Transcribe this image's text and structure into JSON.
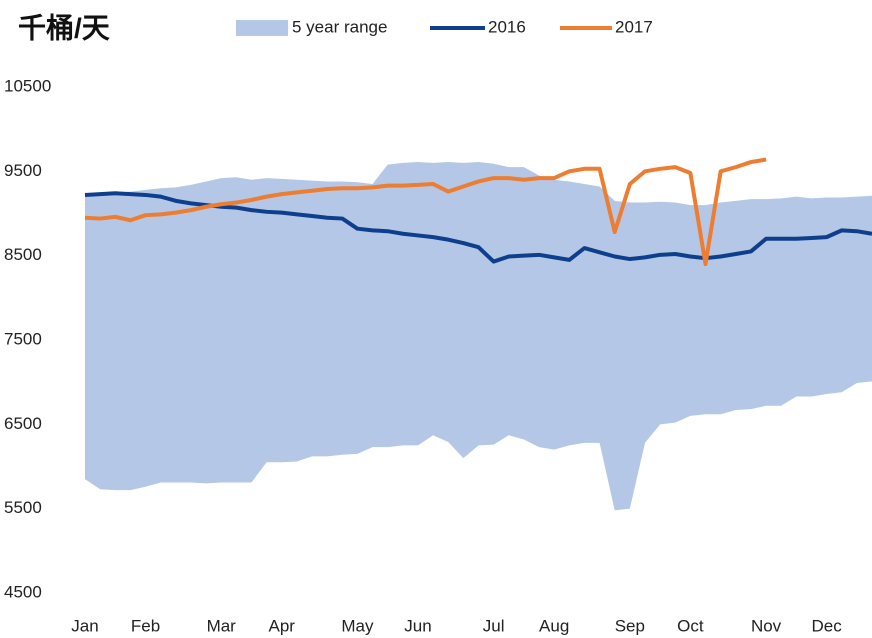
{
  "chart_data": {
    "type": "line",
    "title": "千桶/天",
    "categories": [
      "Jan",
      null,
      null,
      null,
      "Feb",
      null,
      null,
      null,
      null,
      "Mar",
      null,
      null,
      null,
      "Apr",
      null,
      null,
      null,
      null,
      "May",
      null,
      null,
      null,
      "Jun",
      null,
      null,
      null,
      null,
      "Jul",
      null,
      null,
      null,
      "Aug",
      null,
      null,
      null,
      null,
      "Sep",
      null,
      null,
      null,
      "Oct",
      null,
      null,
      null,
      null,
      "Nov",
      null,
      null,
      null,
      "Dec",
      null,
      null,
      null
    ],
    "range": {
      "name": "5 year range",
      "color": "#b4c7e7",
      "upper": [
        9230,
        9240,
        9250,
        9260,
        9280,
        9300,
        9310,
        9340,
        9380,
        9420,
        9430,
        9400,
        9420,
        9410,
        9400,
        9390,
        9380,
        9380,
        9370,
        9350,
        9580,
        9600,
        9610,
        9600,
        9610,
        9600,
        9610,
        9590,
        9550,
        9550,
        9450,
        9400,
        9380,
        9350,
        9320,
        9150,
        9130,
        9130,
        9140,
        9130,
        9100,
        9100,
        9130,
        9150,
        9170,
        9170,
        9180,
        9200,
        9180,
        9190,
        9190,
        9200,
        9210
      ],
      "lower": [
        5850,
        5730,
        5720,
        5720,
        5760,
        5810,
        5810,
        5810,
        5800,
        5810,
        5810,
        5810,
        6050,
        6050,
        6060,
        6120,
        6120,
        6140,
        6150,
        6230,
        6230,
        6250,
        6250,
        6370,
        6290,
        6100,
        6250,
        6260,
        6370,
        6320,
        6230,
        6200,
        6250,
        6280,
        6280,
        5480,
        5500,
        6280,
        6500,
        6520,
        6600,
        6620,
        6620,
        6670,
        6680,
        6720,
        6720,
        6830,
        6830,
        6860,
        6880,
        6990,
        7010
      ]
    },
    "series": [
      {
        "name": "2016",
        "color": "#0e3f8c",
        "values": [
          9220,
          9230,
          9240,
          9230,
          9220,
          9200,
          9150,
          9120,
          9100,
          9080,
          9070,
          9040,
          9020,
          9010,
          8990,
          8970,
          8950,
          8940,
          8820,
          8800,
          8790,
          8760,
          8740,
          8720,
          8690,
          8650,
          8600,
          8430,
          8490,
          8500,
          8510,
          8480,
          8450,
          8590,
          8540,
          8490,
          8460,
          8480,
          8510,
          8520,
          8490,
          8470,
          8490,
          8520,
          8550,
          8700,
          8700,
          8700,
          8710,
          8720,
          8800,
          8790,
          8760
        ]
      },
      {
        "name": "2017",
        "color": "#ed7d31",
        "values": [
          8950,
          8940,
          8960,
          8920,
          8980,
          8990,
          9010,
          9040,
          9080,
          9110,
          9130,
          9160,
          9200,
          9230,
          9250,
          9270,
          9290,
          9300,
          9300,
          9310,
          9330,
          9330,
          9340,
          9350,
          9260,
          9320,
          9380,
          9420,
          9420,
          9400,
          9420,
          9420,
          9500,
          9530,
          9530,
          8780,
          9350,
          9500,
          9530,
          9550,
          9480,
          8400,
          9500,
          9550,
          9610,
          9640,
          null,
          null,
          null,
          null,
          null,
          null,
          null
        ]
      }
    ],
    "ylim": [
      4500,
      10500
    ],
    "yticks": [
      4500,
      5500,
      6500,
      7500,
      8500,
      9500,
      10500
    ],
    "grid": false
  }
}
